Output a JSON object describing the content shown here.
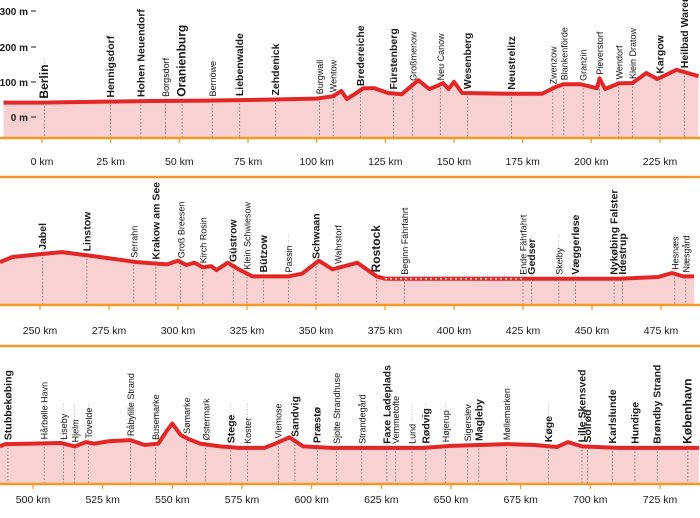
{
  "chart_data": {
    "type": "line",
    "title": "",
    "xlabel": "",
    "ylabel": "",
    "colors": {
      "line": "#e32626",
      "fill": "#f8d2d2",
      "border": "#f29a25",
      "marker": "#1a1a1a"
    },
    "yticks": [
      "300 m",
      "200 m",
      "100 m",
      "0 m"
    ],
    "ylim": [
      0,
      320
    ],
    "rows": [
      {
        "xlim": [
          -14,
          239
        ],
        "xticks": [
          {
            "v": 0,
            "label": "0 km"
          },
          {
            "v": 25,
            "label": "25 km"
          },
          {
            "v": 50,
            "label": "50 km"
          },
          {
            "v": 75,
            "label": "75 km"
          },
          {
            "v": 100,
            "label": "100 km"
          },
          {
            "v": 125,
            "label": "125 km"
          },
          {
            "v": 150,
            "label": "150 km"
          },
          {
            "v": 175,
            "label": "175 km"
          },
          {
            "v": 200,
            "label": "200 km"
          },
          {
            "v": 225,
            "label": "225 km"
          }
        ],
        "profile": [
          [
            -14,
            36
          ],
          [
            0,
            36
          ],
          [
            20,
            38
          ],
          [
            40,
            40
          ],
          [
            60,
            41
          ],
          [
            80,
            43
          ],
          [
            100,
            46
          ],
          [
            106,
            52
          ],
          [
            109,
            65
          ],
          [
            111,
            45
          ],
          [
            114,
            58
          ],
          [
            117,
            72
          ],
          [
            121,
            72
          ],
          [
            126,
            60
          ],
          [
            131,
            57
          ],
          [
            137,
            92
          ],
          [
            141,
            70
          ],
          [
            144,
            78
          ],
          [
            146,
            85
          ],
          [
            148,
            70
          ],
          [
            150,
            88
          ],
          [
            153,
            60
          ],
          [
            170,
            58
          ],
          [
            182,
            58
          ],
          [
            187,
            75
          ],
          [
            190,
            82
          ],
          [
            196,
            82
          ],
          [
            202,
            72
          ],
          [
            203,
            96
          ],
          [
            205,
            70
          ],
          [
            210,
            84
          ],
          [
            215,
            85
          ],
          [
            220,
            110
          ],
          [
            224,
            95
          ],
          [
            231,
            118
          ],
          [
            239,
            102
          ]
        ],
        "places": [
          {
            "km": 1,
            "name": "Berlin",
            "cls": "major"
          },
          {
            "km": 25,
            "name": "Hennigsdorf",
            "cls": "mid"
          },
          {
            "km": 36,
            "name": "Hohen Neuendorf",
            "cls": "mid"
          },
          {
            "km": 45,
            "name": "Borgsdorf",
            "cls": ""
          },
          {
            "km": 51,
            "name": "Oranienburg",
            "cls": "major"
          },
          {
            "km": 62,
            "name": "Bernöwe",
            "cls": ""
          },
          {
            "km": 72,
            "name": "Liebenwalde",
            "cls": "mid"
          },
          {
            "km": 85,
            "name": "Zehdenick",
            "cls": "mid"
          },
          {
            "km": 101,
            "name": "Burgwall",
            "cls": ""
          },
          {
            "km": 106,
            "name": "Wentow",
            "cls": ""
          },
          {
            "km": 116,
            "name": "Bredereiche",
            "cls": "mid"
          },
          {
            "km": 128,
            "name": "Fürstenberg",
            "cls": "mid"
          },
          {
            "km": 135,
            "name": "Großmenow",
            "cls": ""
          },
          {
            "km": 145,
            "name": "Neu Canow",
            "cls": ""
          },
          {
            "km": 155,
            "name": "Wesenberg",
            "cls": "mid"
          },
          {
            "km": 171,
            "name": "Neustrelitz",
            "cls": "mid"
          },
          {
            "km": 186,
            "name": "Zwenzow",
            "cls": ""
          },
          {
            "km": 190,
            "name": "Blankenförde",
            "cls": ""
          },
          {
            "km": 197,
            "name": "Granzin",
            "cls": ""
          },
          {
            "km": 203,
            "name": "Pieverstorf",
            "cls": ""
          },
          {
            "km": 210,
            "name": "Wendorf",
            "cls": ""
          },
          {
            "km": 215,
            "name": "Klein Dratow",
            "cls": ""
          },
          {
            "km": 225,
            "name": "Kargow",
            "cls": "mid"
          },
          {
            "km": 234,
            "name": "Heilbad Waren",
            "cls": "mid"
          }
        ]
      },
      {
        "xlim": [
          230,
          487
        ],
        "xticks": [
          {
            "v": 250,
            "label": "250 km"
          },
          {
            "v": 275,
            "label": "275 km"
          },
          {
            "v": 300,
            "label": "300 km"
          },
          {
            "v": 325,
            "label": "325 km"
          },
          {
            "v": 350,
            "label": "350 km"
          },
          {
            "v": 375,
            "label": "375 km"
          },
          {
            "v": 400,
            "label": "400 km"
          },
          {
            "v": 425,
            "label": "425 km"
          },
          {
            "v": 450,
            "label": "450 km"
          },
          {
            "v": 475,
            "label": "475 km"
          }
        ],
        "profile": [
          [
            230,
            80
          ],
          [
            240,
            98
          ],
          [
            252,
            110
          ],
          [
            258,
            115
          ],
          [
            270,
            100
          ],
          [
            285,
            80
          ],
          [
            296,
            72
          ],
          [
            300,
            85
          ],
          [
            303,
            70
          ],
          [
            306,
            78
          ],
          [
            309,
            62
          ],
          [
            312,
            66
          ],
          [
            314,
            52
          ],
          [
            318,
            78
          ],
          [
            322,
            55
          ],
          [
            327,
            30
          ],
          [
            340,
            30
          ],
          [
            345,
            40
          ],
          [
            351,
            85
          ],
          [
            356,
            55
          ],
          [
            365,
            78
          ],
          [
            372,
            30
          ],
          [
            375,
            22
          ],
          [
            395,
            22
          ],
          [
            420,
            22
          ],
          [
            440,
            22
          ],
          [
            460,
            22
          ],
          [
            474,
            28
          ],
          [
            479,
            42
          ],
          [
            483,
            30
          ],
          [
            487,
            30
          ]
        ],
        "places": [
          {
            "km": 234,
            "name": "Heilbad Waren",
            "cls": "mid"
          },
          {
            "km": 251,
            "name": "Jabel",
            "cls": "mid"
          },
          {
            "km": 267,
            "name": "Linstow",
            "cls": "mid"
          },
          {
            "km": 284,
            "name": "Serrahn",
            "cls": ""
          },
          {
            "km": 292,
            "name": "Krakow am See",
            "cls": "mid"
          },
          {
            "km": 301,
            "name": "Groß Breesen",
            "cls": ""
          },
          {
            "km": 309,
            "name": "Kirch Rosin",
            "cls": ""
          },
          {
            "km": 320,
            "name": "Güstrow",
            "cls": "mid"
          },
          {
            "km": 325,
            "name": "Klein Schwiesow",
            "cls": ""
          },
          {
            "km": 331,
            "name": "Bützow",
            "cls": "mid"
          },
          {
            "km": 340,
            "name": "Passin",
            "cls": ""
          },
          {
            "km": 350,
            "name": "Schwaan",
            "cls": "mid"
          },
          {
            "km": 358,
            "name": "Wahrstorf",
            "cls": ""
          },
          {
            "km": 372,
            "name": "Rostock",
            "cls": "major"
          },
          {
            "km": 382,
            "name": "Beginn Fährfahrt",
            "cls": ""
          },
          {
            "km": 425,
            "name": "Ende Fährfahrt",
            "cls": ""
          },
          {
            "km": 428,
            "name": "Gedser",
            "cls": "mid"
          },
          {
            "km": 438,
            "name": "Skelby",
            "cls": ""
          },
          {
            "km": 444,
            "name": "Væggerløse",
            "cls": "mid"
          },
          {
            "km": 458,
            "name": "Nykøbing Falster",
            "cls": "mid"
          },
          {
            "km": 461,
            "name": "Idestrup",
            "cls": "mid"
          },
          {
            "km": 480,
            "name": "Hesnæs",
            "cls": ""
          },
          {
            "km": 484,
            "name": "Næsgård",
            "cls": ""
          }
        ]
      },
      {
        "xlim": [
          479,
          739
        ],
        "xticks": [
          {
            "v": 500,
            "label": "500 km"
          },
          {
            "v": 525,
            "label": "525 km"
          },
          {
            "v": 550,
            "label": "550 km"
          },
          {
            "v": 575,
            "label": "575 km"
          },
          {
            "v": 600,
            "label": "600 km"
          },
          {
            "v": 625,
            "label": "625 km"
          },
          {
            "v": 650,
            "label": "650 km"
          },
          {
            "v": 675,
            "label": "675 km"
          },
          {
            "v": 700,
            "label": "700 km"
          },
          {
            "v": 725,
            "label": "725 km"
          }
        ],
        "profile": [
          [
            479,
            30
          ],
          [
            490,
            38
          ],
          [
            500,
            40
          ],
          [
            510,
            42
          ],
          [
            515,
            30
          ],
          [
            519,
            45
          ],
          [
            522,
            40
          ],
          [
            527,
            48
          ],
          [
            535,
            52
          ],
          [
            540,
            35
          ],
          [
            545,
            40
          ],
          [
            548,
            85
          ],
          [
            550,
            110
          ],
          [
            553,
            70
          ],
          [
            556,
            55
          ],
          [
            560,
            40
          ],
          [
            567,
            30
          ],
          [
            574,
            25
          ],
          [
            583,
            25
          ],
          [
            587,
            40
          ],
          [
            592,
            62
          ],
          [
            597,
            30
          ],
          [
            607,
            25
          ],
          [
            620,
            25
          ],
          [
            630,
            25
          ],
          [
            640,
            25
          ],
          [
            650,
            32
          ],
          [
            660,
            35
          ],
          [
            670,
            38
          ],
          [
            680,
            35
          ],
          [
            688,
            28
          ],
          [
            692,
            45
          ],
          [
            697,
            30
          ],
          [
            710,
            25
          ],
          [
            725,
            25
          ],
          [
            739,
            25
          ]
        ],
        "places": [
          {
            "km": 482,
            "name": "Næsgård",
            "cls": ""
          },
          {
            "km": 491,
            "name": "Stubbekøbing",
            "cls": "mid"
          },
          {
            "km": 504,
            "name": "Hårbølle Havn",
            "cls": ""
          },
          {
            "km": 511,
            "name": "Liseby",
            "cls": ""
          },
          {
            "km": 515,
            "name": "Hjelm",
            "cls": ""
          },
          {
            "km": 520,
            "name": "Tovelde",
            "cls": ""
          },
          {
            "km": 535,
            "name": "Råbylille Strand",
            "cls": ""
          },
          {
            "km": 544,
            "name": "Busemarke",
            "cls": ""
          },
          {
            "km": 555,
            "name": "Sømarke",
            "cls": ""
          },
          {
            "km": 562,
            "name": "Østermark",
            "cls": ""
          },
          {
            "km": 571,
            "name": "Stege",
            "cls": "mid"
          },
          {
            "km": 577,
            "name": "Koster",
            "cls": ""
          },
          {
            "km": 588,
            "name": "Viemose",
            "cls": ""
          },
          {
            "km": 594,
            "name": "Sandvig",
            "cls": "mid"
          },
          {
            "km": 602,
            "name": "Præstø",
            "cls": "mid"
          },
          {
            "km": 609,
            "name": "Sjolte Strandhuse",
            "cls": ""
          },
          {
            "km": 618,
            "name": "Strandegård",
            "cls": ""
          },
          {
            "km": 627,
            "name": "Faxe Ladeplads",
            "cls": "mid"
          },
          {
            "km": 630,
            "name": "Vemmetofte",
            "cls": ""
          },
          {
            "km": 636,
            "name": "Lund",
            "cls": ""
          },
          {
            "km": 641,
            "name": "Rødvig",
            "cls": "mid"
          },
          {
            "km": 648,
            "name": "Højerup",
            "cls": ""
          },
          {
            "km": 656,
            "name": "Sigerslev",
            "cls": ""
          },
          {
            "km": 660,
            "name": "Magleby",
            "cls": "mid"
          },
          {
            "km": 670,
            "name": "Møllemarken",
            "cls": ""
          },
          {
            "km": 685,
            "name": "Køge",
            "cls": "mid"
          },
          {
            "km": 697,
            "name": "Lille Skensved",
            "cls": "mid"
          },
          {
            "km": 699,
            "name": "Solrød",
            "cls": "mid"
          },
          {
            "km": 708,
            "name": "Karlslunde",
            "cls": "mid"
          },
          {
            "km": 716,
            "name": "Hundige",
            "cls": "mid"
          },
          {
            "km": 724,
            "name": "Brøndby Strand",
            "cls": "mid"
          },
          {
            "km": 735,
            "name": "København",
            "cls": "major"
          }
        ]
      }
    ]
  }
}
